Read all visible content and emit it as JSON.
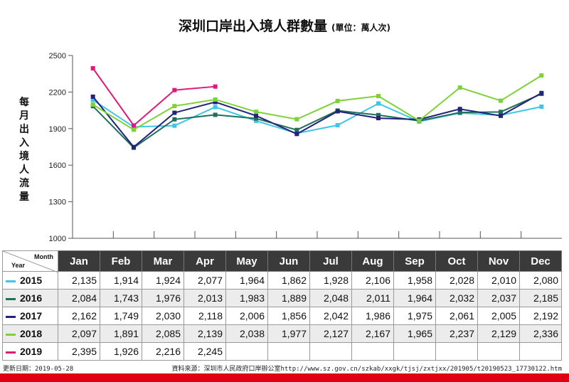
{
  "title": "深圳口岸出入境人群數量",
  "unit": "(單位：萬人次)",
  "footer_date": "更新日期：2019-05-28",
  "footer_source": "資料來源：深圳市人民政府口岸辦公室http://www.sz.gov.cn/szkab/xxgk/tjsj/zxtjxx/201905/t20190523_17730122.htm",
  "table_header": {
    "month_label": "Month",
    "year_label": "Year"
  },
  "chart_data": {
    "type": "line",
    "ylabel": "每月出入境人流量",
    "ylim": [
      1000,
      2500
    ],
    "yticks": [
      1000,
      1300,
      1600,
      1900,
      2200,
      2500
    ],
    "categories": [
      "Jan",
      "Feb",
      "Mar",
      "Apr",
      "May",
      "Jun",
      "Jul",
      "Aug",
      "Sep",
      "Oct",
      "Nov",
      "Dec"
    ],
    "grid": false,
    "series": [
      {
        "name": "2015",
        "color": "#3fc6e6",
        "values": [
          2135,
          1914,
          1924,
          2077,
          1964,
          1862,
          1928,
          2106,
          1958,
          2028,
          2010,
          2080
        ]
      },
      {
        "name": "2016",
        "color": "#1f6f5a",
        "values": [
          2084,
          1743,
          1976,
          2013,
          1983,
          1889,
          2048,
          2011,
          1964,
          2032,
          2037,
          2185
        ]
      },
      {
        "name": "2017",
        "color": "#23237a",
        "values": [
          2162,
          1749,
          2030,
          2118,
          2006,
          1856,
          2042,
          1986,
          1975,
          2061,
          2005,
          2192
        ]
      },
      {
        "name": "2018",
        "color": "#7dd23a",
        "values": [
          2097,
          1891,
          2085,
          2139,
          2038,
          1977,
          2127,
          2167,
          1965,
          2237,
          2129,
          2336
        ]
      },
      {
        "name": "2019",
        "color": "#e0197d",
        "values": [
          2395,
          1926,
          2216,
          2245,
          null,
          null,
          null,
          null,
          null,
          null,
          null,
          null
        ]
      }
    ]
  }
}
